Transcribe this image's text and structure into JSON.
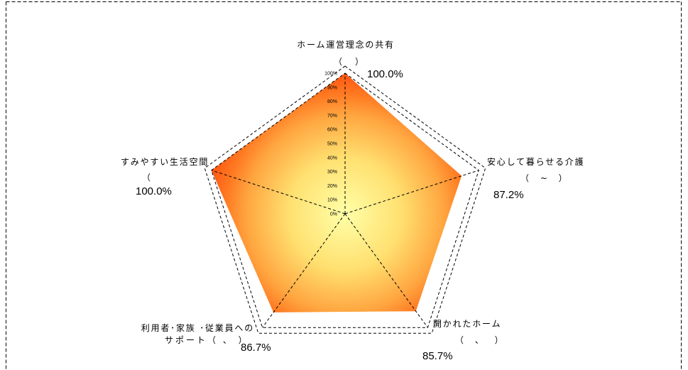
{
  "chart_data": {
    "type": "radar",
    "categories": [
      {
        "line1": "ホーム運営理念の共有",
        "line2": "（　）"
      },
      {
        "line1": "安心して暮らせる介護",
        "line2": "（ ~ ）"
      },
      {
        "line1": "開かれたホーム",
        "line2": "（ 、 ）"
      },
      {
        "line1": "利用者･家族 ･従業員への",
        "line2": "サポート（ 、 ）"
      },
      {
        "line1": "すみやすい生活空間",
        "line2": "（"
      }
    ],
    "values": [
      100.0,
      87.2,
      85.7,
      86.7,
      100.0
    ],
    "value_labels": [
      "100.0%",
      "87.2%",
      "85.7%",
      "86.7%",
      "100.0%"
    ],
    "rlim": [
      0,
      100
    ],
    "ticks": [
      "0%",
      "10%",
      "20%",
      "30%",
      "40%",
      "50%",
      "60%",
      "70%",
      "80%",
      "90%",
      "100%"
    ],
    "grid": true,
    "legend": false,
    "colors": {
      "fill_center": "#ffffa8",
      "fill_inner": "#ffe070",
      "fill_mid": "#ffa640",
      "fill_outer": "#ff7a22",
      "fill_edge": "#ff5510",
      "lines": "#000000"
    }
  }
}
